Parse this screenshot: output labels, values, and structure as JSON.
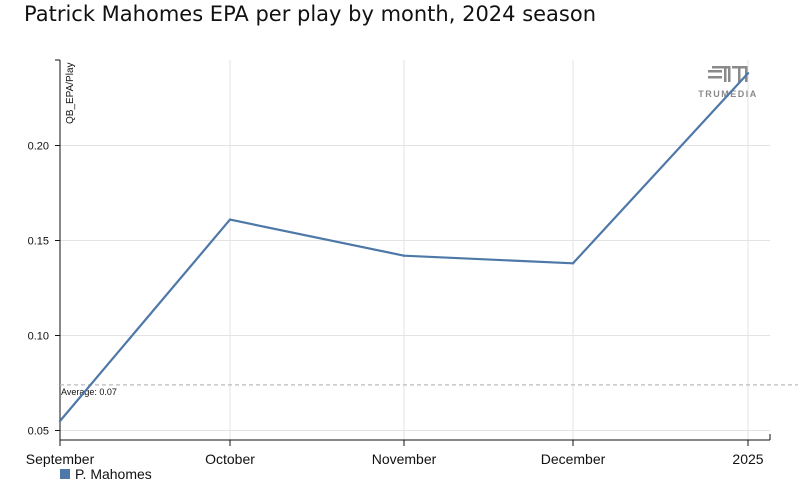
{
  "page": {
    "title": "Patrick Mahomes EPA per play by month, 2024 season"
  },
  "logo": {
    "text": "TRUMEDIA",
    "icon": "trumedia-logo-icon"
  },
  "chart_data": {
    "type": "line",
    "title": "Patrick Mahomes EPA per play by month, 2024 season",
    "xlabel": "",
    "ylabel": "QB_EPA/Play",
    "categories": [
      "September",
      "October",
      "November",
      "December",
      "2025"
    ],
    "series": [
      {
        "name": "P. Mahomes",
        "color": "#4e78a8",
        "values": [
          0.055,
          0.161,
          0.142,
          0.138,
          0.238
        ]
      }
    ],
    "yticks": [
      0.05,
      0.1,
      0.15,
      0.2
    ],
    "ytick_labels": [
      "0.05",
      "0.10",
      "0.15",
      "0.20"
    ],
    "ylim": [
      0.045,
      0.245
    ],
    "reference_line": {
      "label": "Average: 0.07",
      "value": 0.074,
      "color": "#bbbbbb"
    },
    "grid": true,
    "legend": "bottom-left"
  }
}
